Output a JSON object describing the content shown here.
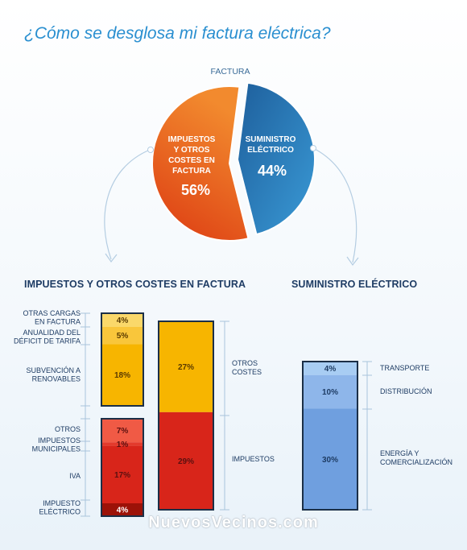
{
  "title": "¿Cómo se desglosa mi factura eléctrica?",
  "watermark": "NuevosVecinos.com",
  "colors": {
    "title": "#2a8fd0",
    "label": "#1e3c64",
    "impuestos_pie": "#ea6a1e",
    "suministro_pie": "#2a79b8",
    "otros_costes": "#f7b500",
    "impuestos": "#d8251a",
    "suministro": "#7aa6e4"
  },
  "chart_data": [
    {
      "type": "pie",
      "title": "FACTURA",
      "slices": [
        {
          "label": "IMPUESTOS Y OTROS COSTES EN FACTURA",
          "value": 56,
          "display": "56%",
          "color": "#ea6a1e"
        },
        {
          "label": "SUMINISTRO ELÉCTRICO",
          "value": 44,
          "display": "44%",
          "color": "#2a79b8"
        }
      ]
    },
    {
      "type": "bar",
      "title": "IMPUESTOS Y OTROS COSTES EN FACTURA",
      "stacked": true,
      "bars": [
        {
          "name": "otros-costes-breakdown",
          "segments": [
            {
              "label": "OTRAS CARGAS EN FACTURA",
              "value": 4,
              "display": "4%",
              "color": "#fad86a"
            },
            {
              "label": "ANUALIDAD DEL DÉFICIT DE TARIFA",
              "value": 5,
              "display": "5%",
              "color": "#f9c63b"
            },
            {
              "label": "SUBVENCIÓN A RENOVABLES",
              "value": 18,
              "display": "18%",
              "color": "#f7b500"
            }
          ]
        },
        {
          "name": "impuestos-breakdown",
          "segments": [
            {
              "label": "OTROS",
              "value": 7,
              "display": "7%",
              "color": "#f05a45"
            },
            {
              "label": "IMPUESTOS MUNICIPALES",
              "value": 1,
              "display": "1%",
              "color": "#e33a2c"
            },
            {
              "label": "IVA",
              "value": 17,
              "display": "17%",
              "color": "#d8251a"
            },
            {
              "label": "IMPUESTO ELÉCTRICO",
              "value": 4,
              "display": "4%",
              "color": "#9c1208"
            }
          ]
        },
        {
          "name": "impuestos-total",
          "segments": [
            {
              "label": "OTROS COSTES",
              "value": 27,
              "display": "27%",
              "color": "#f7b500"
            },
            {
              "label": "IMPUESTOS",
              "value": 29,
              "display": "29%",
              "color": "#d8251a"
            }
          ]
        }
      ]
    },
    {
      "type": "bar",
      "title": "SUMINISTRO ELÉCTRICO",
      "stacked": true,
      "bars": [
        {
          "name": "suministro-breakdown",
          "segments": [
            {
              "label": "TRANSPORTE",
              "value": 4,
              "display": "4%",
              "color": "#a8cdf3"
            },
            {
              "label": "DISTRIBUCIÓN",
              "value": 10,
              "display": "10%",
              "color": "#8eb6ea"
            },
            {
              "label": "ENERGÍA Y COMERCIALIZACIÓN",
              "value": 30,
              "display": "30%",
              "color": "#6f9fdf"
            }
          ]
        }
      ]
    }
  ]
}
